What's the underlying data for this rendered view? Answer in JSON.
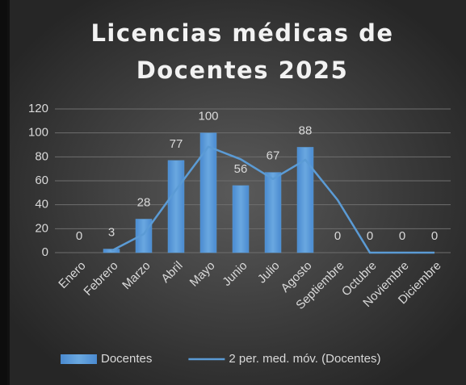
{
  "chart_data": {
    "type": "bar",
    "title": "Licencias médicas de Docentes 2025",
    "categories": [
      "Enero",
      "Febrero",
      "Marzo",
      "Abril",
      "Mayo",
      "Junio",
      "Julio",
      "Agosto",
      "Septiembre",
      "Octubre",
      "Noviembre",
      "Diciembre"
    ],
    "series": [
      {
        "name": "Docentes",
        "type": "bar",
        "color": "#5b9bd5",
        "values": [
          0,
          3,
          28,
          77,
          100,
          56,
          67,
          88,
          0,
          0,
          0,
          0
        ]
      },
      {
        "name": "2 per. med. móv. (Docentes)",
        "type": "line",
        "color": "#5b9bd5",
        "values": [
          null,
          1.5,
          15.5,
          52.5,
          88.5,
          78,
          61.5,
          77.5,
          44,
          0,
          0,
          0
        ]
      }
    ],
    "ylim": [
      0,
      120
    ],
    "yticks": [
      0,
      20,
      40,
      60,
      80,
      100,
      120
    ],
    "grid": true,
    "legend": "bottom"
  }
}
